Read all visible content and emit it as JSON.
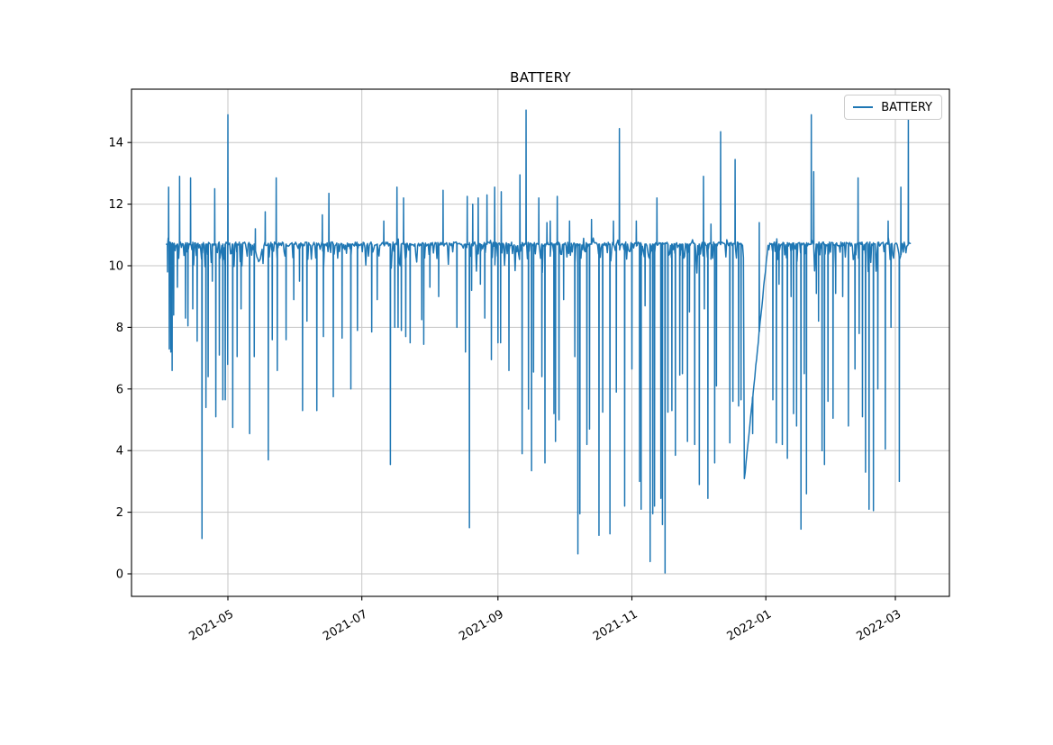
{
  "title": "BATTERY",
  "legend": {
    "label": "BATTERY"
  },
  "colors": {
    "line": "#1f77b4",
    "grid": "#c6c6c6",
    "spine": "#000000",
    "tick_text": "#000000",
    "background": "#ffffff"
  },
  "axes": {
    "y_ticks": [
      0,
      2,
      4,
      6,
      8,
      10,
      12,
      14
    ],
    "x_ticks": [
      {
        "label": "2021-05",
        "day": 28
      },
      {
        "label": "2021-07",
        "day": 89
      },
      {
        "label": "2021-09",
        "day": 151
      },
      {
        "label": "2021-11",
        "day": 212
      },
      {
        "label": "2022-01",
        "day": 273
      },
      {
        "label": "2022-03",
        "day": 332
      }
    ],
    "xlim_days": [
      -15.9,
      356.6
    ],
    "ylim": [
      -0.73,
      15.73
    ],
    "x_label_rotation_deg": 30,
    "grid": true
  },
  "chart_data": {
    "type": "line",
    "title": "BATTERY",
    "series_name": "BATTERY",
    "xlabel": "",
    "ylabel": "",
    "x_start_date": "2021-04-03",
    "x_end_date": "2022-03-08",
    "x_unit": "days since 2021-04-03",
    "baseline": 10.7,
    "y_min_observed": 0.03,
    "y_max_observed": 15.05,
    "up_spikes": [
      [
        1,
        12.55
      ],
      [
        6,
        12.9
      ],
      [
        11,
        12.85
      ],
      [
        22,
        12.5
      ],
      [
        28,
        14.9
      ],
      [
        40.5,
        11.2
      ],
      [
        45,
        11.75
      ],
      [
        50,
        12.85
      ],
      [
        71,
        11.65
      ],
      [
        74,
        12.35
      ],
      [
        99,
        11.45
      ],
      [
        105,
        12.55
      ],
      [
        108,
        12.2
      ],
      [
        126,
        12.45
      ],
      [
        137,
        12.25
      ],
      [
        139.5,
        12.0
      ],
      [
        142,
        12.2
      ],
      [
        146,
        12.3
      ],
      [
        149.5,
        12.55
      ],
      [
        152.5,
        12.4
      ],
      [
        161,
        12.95
      ],
      [
        163.8,
        15.05
      ],
      [
        169.6,
        12.2
      ],
      [
        173.3,
        11.4
      ],
      [
        174.8,
        11.45
      ],
      [
        178,
        12.25
      ],
      [
        183.6,
        11.45
      ],
      [
        193.6,
        11.5
      ],
      [
        203.6,
        11.45
      ],
      [
        206.3,
        14.45
      ],
      [
        214,
        11.45
      ],
      [
        223.4,
        12.2
      ],
      [
        244.6,
        12.9
      ],
      [
        248,
        11.35
      ],
      [
        252.4,
        14.35
      ],
      [
        259,
        13.45
      ],
      [
        270,
        11.4
      ],
      [
        293.7,
        14.9
      ],
      [
        294.8,
        13.05
      ],
      [
        315,
        12.85
      ],
      [
        328.7,
        11.45
      ],
      [
        334.5,
        12.55
      ],
      [
        337.9,
        14.8
      ]
    ],
    "down_spikes": [
      [
        0.5,
        9.8
      ],
      [
        1.3,
        7.3
      ],
      [
        2,
        7.2
      ],
      [
        2.6,
        6.6
      ],
      [
        3.3,
        8.4
      ],
      [
        5,
        9.3
      ],
      [
        8.7,
        8.3
      ],
      [
        9.8,
        8.05
      ],
      [
        12,
        8.6
      ],
      [
        14,
        7.55
      ],
      [
        16.2,
        1.15
      ],
      [
        18,
        5.4
      ],
      [
        19,
        6.4
      ],
      [
        20.9,
        9.5
      ],
      [
        22.5,
        5.1
      ],
      [
        24.1,
        7.1
      ],
      [
        25.7,
        5.65
      ],
      [
        26.8,
        5.65
      ],
      [
        27.9,
        6.8
      ],
      [
        30.2,
        4.75
      ],
      [
        32.2,
        7.05
      ],
      [
        34,
        8.6
      ],
      [
        37.9,
        4.55
      ],
      [
        40,
        7.05
      ],
      [
        46.4,
        3.7
      ],
      [
        48.2,
        7.6
      ],
      [
        50.5,
        6.6
      ],
      [
        54.5,
        7.6
      ],
      [
        58,
        8.9
      ],
      [
        60.6,
        9.5
      ],
      [
        62,
        5.3
      ],
      [
        64,
        8.2
      ],
      [
        68.5,
        5.3
      ],
      [
        71.5,
        7.7
      ],
      [
        76,
        5.75
      ],
      [
        80,
        7.65
      ],
      [
        84,
        6.0
      ],
      [
        87,
        7.9
      ],
      [
        93.5,
        7.85
      ],
      [
        96,
        8.9
      ],
      [
        102,
        3.55
      ],
      [
        104,
        8.0
      ],
      [
        105.5,
        8.0
      ],
      [
        107,
        7.9
      ],
      [
        109,
        7.7
      ],
      [
        111,
        7.5
      ],
      [
        116.3,
        8.25
      ],
      [
        117.2,
        7.45
      ],
      [
        120,
        9.3
      ],
      [
        124,
        9.0
      ],
      [
        132.3,
        8.0
      ],
      [
        136.2,
        7.2
      ],
      [
        138,
        1.5
      ],
      [
        139,
        9.2
      ],
      [
        143,
        9.4
      ],
      [
        145,
        8.3
      ],
      [
        148,
        6.95
      ],
      [
        151,
        7.5
      ],
      [
        152.2,
        7.5
      ],
      [
        156,
        6.6
      ],
      [
        162,
        3.9
      ],
      [
        164.9,
        5.35
      ],
      [
        166.3,
        3.35
      ],
      [
        167.2,
        6.55
      ],
      [
        171,
        6.4
      ],
      [
        172.4,
        3.6
      ],
      [
        176.5,
        5.2
      ],
      [
        177.2,
        4.3
      ],
      [
        178.8,
        5.0
      ],
      [
        180.9,
        8.9
      ],
      [
        186,
        7.05
      ],
      [
        187.4,
        0.65
      ],
      [
        188.3,
        1.95
      ],
      [
        191.5,
        4.2
      ],
      [
        192.7,
        4.7
      ],
      [
        197,
        1.25
      ],
      [
        198.7,
        5.25
      ],
      [
        202,
        1.3
      ],
      [
        204.9,
        5.9
      ],
      [
        208.7,
        2.2
      ],
      [
        212,
        6.65
      ],
      [
        215.5,
        3.0
      ],
      [
        216.2,
        2.1
      ],
      [
        218,
        8.7
      ],
      [
        220.3,
        0.4
      ],
      [
        221.5,
        1.95
      ],
      [
        222.3,
        2.2
      ],
      [
        225.2,
        2.45
      ],
      [
        225.9,
        1.6
      ],
      [
        227.1,
        0.03
      ],
      [
        228.4,
        5.25
      ],
      [
        230.2,
        5.3
      ],
      [
        231.8,
        3.85
      ],
      [
        233.8,
        6.45
      ],
      [
        235,
        6.5
      ],
      [
        237.3,
        4.3
      ],
      [
        238.2,
        8.5
      ],
      [
        240.6,
        4.2
      ],
      [
        242.7,
        2.9
      ],
      [
        245,
        8.6
      ],
      [
        246.6,
        2.45
      ],
      [
        249.7,
        3.6
      ],
      [
        250.5,
        6.1
      ],
      [
        256.6,
        4.25
      ],
      [
        258,
        5.6
      ],
      [
        260.6,
        5.45
      ],
      [
        261.7,
        5.65
      ],
      [
        267,
        4.55
      ],
      [
        276.2,
        5.65
      ],
      [
        277.8,
        4.25
      ],
      [
        279,
        9.4
      ],
      [
        280.5,
        4.2
      ],
      [
        282.8,
        3.75
      ],
      [
        284.5,
        9.0
      ],
      [
        285.6,
        5.2
      ],
      [
        287,
        4.8
      ],
      [
        289,
        1.45
      ],
      [
        290.5,
        6.5
      ],
      [
        291.5,
        2.6
      ],
      [
        296,
        9.1
      ],
      [
        297,
        8.2
      ],
      [
        298.6,
        4.0
      ],
      [
        299.7,
        3.55
      ],
      [
        301.3,
        5.6
      ],
      [
        303.6,
        5.05
      ],
      [
        304.8,
        9.1
      ],
      [
        308,
        9.0
      ],
      [
        310.6,
        4.8
      ],
      [
        313.6,
        6.65
      ],
      [
        315.5,
        7.8
      ],
      [
        317,
        5.1
      ],
      [
        318.4,
        3.3
      ],
      [
        320,
        2.1
      ],
      [
        322,
        2.05
      ],
      [
        324,
        6.0
      ],
      [
        327.4,
        4.05
      ],
      [
        330,
        8.0
      ],
      [
        333.8,
        3.0
      ]
    ],
    "recovery_ramp": {
      "start_day": 263,
      "bottom_value": 2.9,
      "end_day": 274
    },
    "sags": [
      [
        40,
        10.2,
        44
      ],
      [
        333,
        10.25,
        335
      ]
    ],
    "legend_position": "upper right"
  }
}
